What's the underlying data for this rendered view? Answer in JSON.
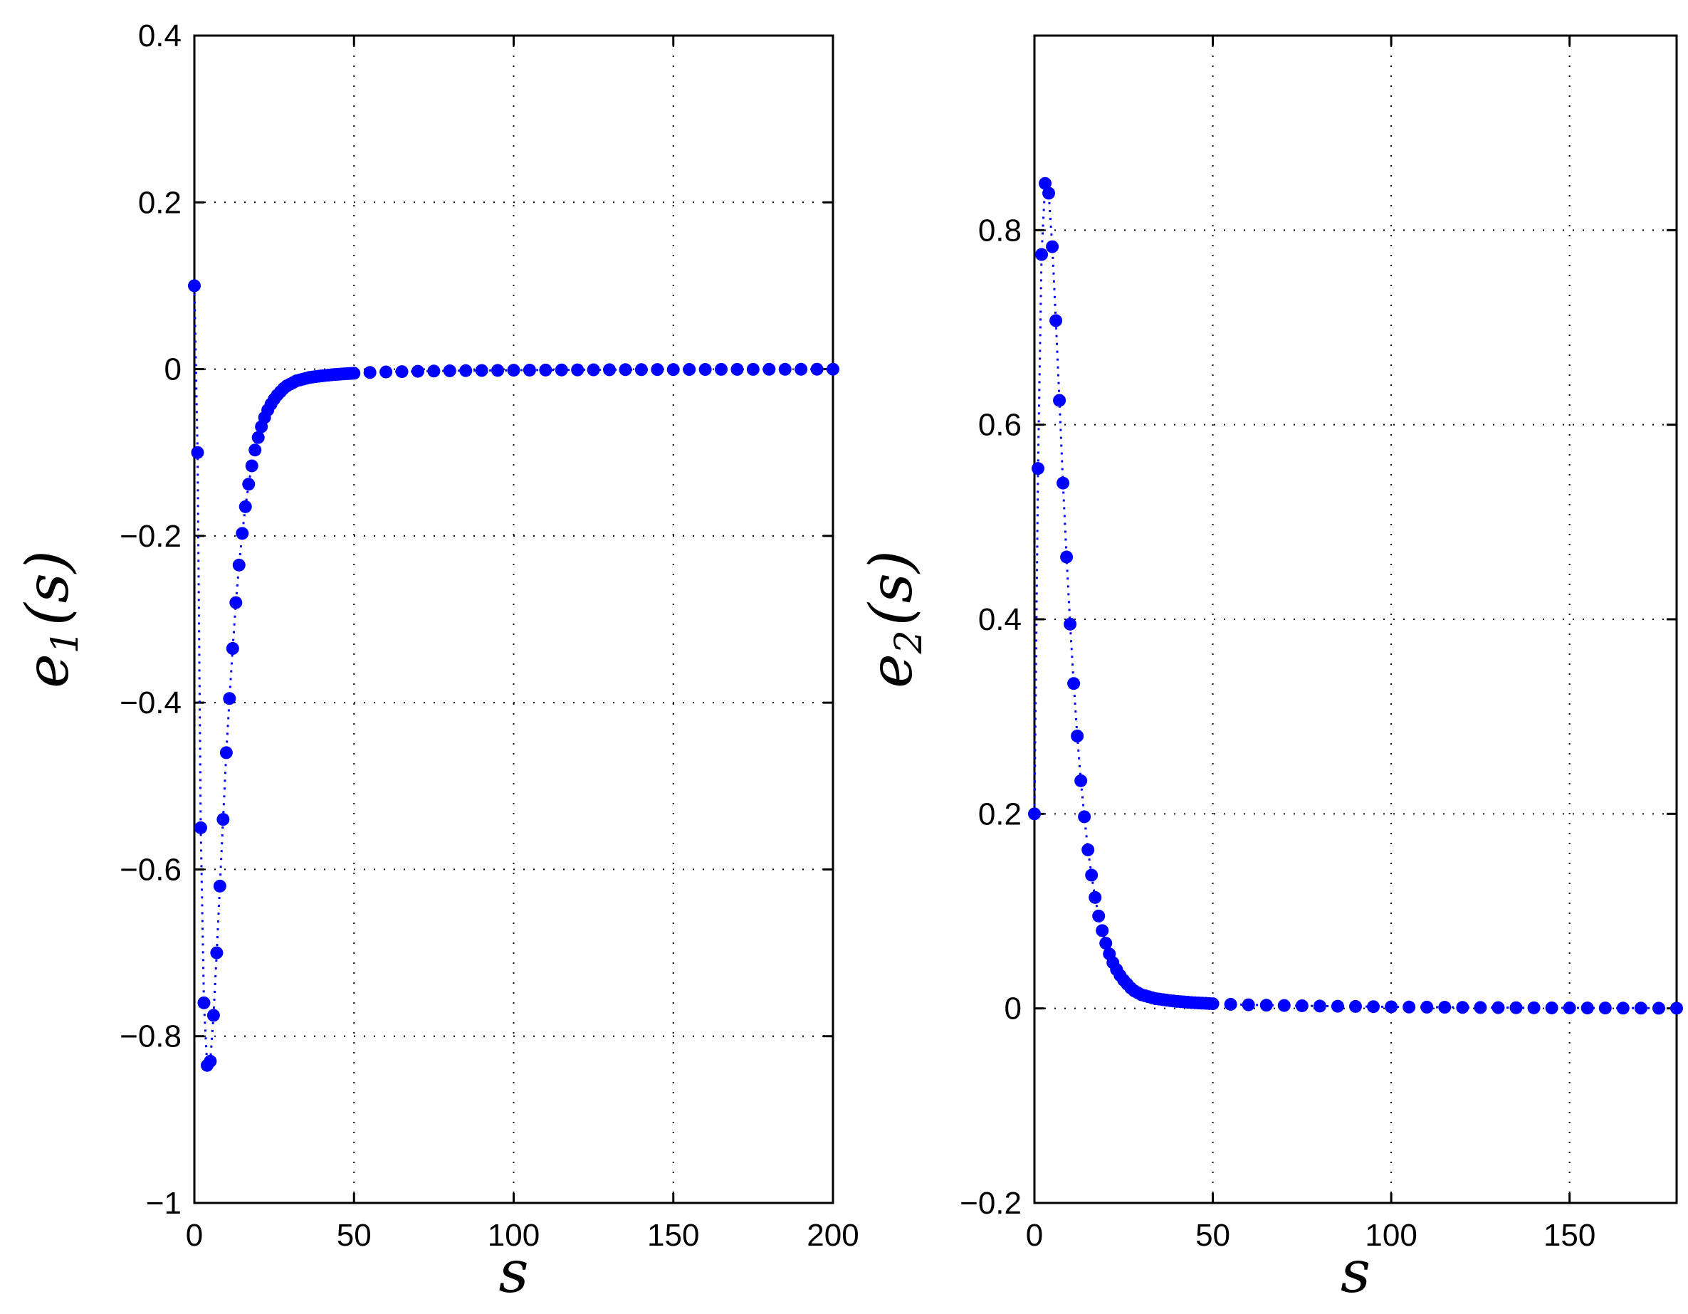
{
  "chart_data": [
    {
      "type": "scatter",
      "ylabel_main": "e",
      "ylabel_sub": "1",
      "ylabel_arg": "(s)",
      "xlabel": "s",
      "xlim": [
        0,
        200
      ],
      "ylim": [
        -1,
        0.4
      ],
      "xticks": [
        0,
        50,
        100,
        150,
        200
      ],
      "xtick_labels": [
        "0",
        "50",
        "100",
        "150",
        "200"
      ],
      "yticks": [
        -1,
        -0.8,
        -0.6,
        -0.4,
        -0.2,
        0,
        0.2,
        0.4
      ],
      "ytick_labels": [
        "−1",
        "−0.8",
        "−0.6",
        "−0.4",
        "−0.2",
        "0",
        "0.2",
        "0.4"
      ],
      "grid": true,
      "marker_color": "#0000ff",
      "line_style": "dotted",
      "series": [
        {
          "x": [
            0,
            1,
            2,
            3,
            4,
            5,
            6,
            7,
            8,
            9,
            10,
            11,
            12,
            13,
            14,
            15,
            16,
            17,
            18,
            19,
            20,
            21,
            22,
            23,
            24,
            25,
            26,
            27,
            28,
            29,
            30,
            31,
            32,
            33,
            34,
            35,
            36,
            37,
            38,
            39,
            40,
            41,
            42,
            43,
            44,
            45,
            46,
            47,
            48,
            49,
            50,
            55,
            60,
            65,
            70,
            75,
            80,
            85,
            90,
            95,
            100,
            105,
            110,
            115,
            120,
            125,
            130,
            135,
            140,
            145,
            150,
            155,
            160,
            165,
            170,
            175,
            180,
            185,
            190,
            195,
            200
          ],
          "y": [
            0.1,
            -0.1,
            -0.55,
            -0.76,
            -0.835,
            -0.83,
            -0.775,
            -0.7,
            -0.62,
            -0.54,
            -0.46,
            -0.395,
            -0.335,
            -0.28,
            -0.235,
            -0.197,
            -0.165,
            -0.138,
            -0.116,
            -0.097,
            -0.082,
            -0.069,
            -0.058,
            -0.049,
            -0.042,
            -0.036,
            -0.031,
            -0.027,
            -0.023,
            -0.02,
            -0.018,
            -0.016,
            -0.014,
            -0.013,
            -0.012,
            -0.011,
            -0.01,
            -0.0095,
            -0.009,
            -0.0085,
            -0.008,
            -0.0076,
            -0.0072,
            -0.0068,
            -0.0065,
            -0.0062,
            -0.0059,
            -0.0056,
            -0.0054,
            -0.0052,
            -0.005,
            -0.004,
            -0.0034,
            -0.003,
            -0.0026,
            -0.0023,
            -0.002,
            -0.0018,
            -0.0016,
            -0.0015,
            -0.0013,
            -0.0012,
            -0.0011,
            -0.001,
            -0.0009,
            -0.0008,
            -0.0007,
            -0.0006,
            -0.0006,
            -0.0005,
            -0.0005,
            -0.0004,
            -0.0004,
            -0.0003,
            -0.0003,
            -0.0003,
            -0.0002,
            -0.0002,
            -0.0002,
            -0.0001,
            -0.0001
          ]
        }
      ]
    },
    {
      "type": "scatter",
      "ylabel_main": "e",
      "ylabel_sub": "2",
      "ylabel_arg": "(s)",
      "xlabel": "s",
      "xlim": [
        0,
        180
      ],
      "ylim": [
        -0.2,
        1.0
      ],
      "xticks": [
        0,
        50,
        100,
        150
      ],
      "xtick_labels": [
        "0",
        "50",
        "100",
        "150"
      ],
      "yticks": [
        -0.2,
        0,
        0.2,
        0.4,
        0.6,
        0.8
      ],
      "ytick_labels": [
        "−0.2",
        "0",
        "0.2",
        "0.4",
        "0.6",
        "0.8"
      ],
      "grid": true,
      "marker_color": "#0000ff",
      "line_style": "dotted",
      "series": [
        {
          "x": [
            0,
            1,
            2,
            3,
            4,
            5,
            6,
            7,
            8,
            9,
            10,
            11,
            12,
            13,
            14,
            15,
            16,
            17,
            18,
            19,
            20,
            21,
            22,
            23,
            24,
            25,
            26,
            27,
            28,
            29,
            30,
            31,
            32,
            33,
            34,
            35,
            36,
            37,
            38,
            39,
            40,
            41,
            42,
            43,
            44,
            45,
            46,
            47,
            48,
            49,
            50,
            55,
            60,
            65,
            70,
            75,
            80,
            85,
            90,
            95,
            100,
            105,
            110,
            115,
            120,
            125,
            130,
            135,
            140,
            145,
            150,
            155,
            160,
            165,
            170,
            175,
            180
          ],
          "y": [
            0.2,
            0.555,
            0.775,
            0.848,
            0.838,
            0.783,
            0.707,
            0.625,
            0.54,
            0.464,
            0.395,
            0.334,
            0.28,
            0.234,
            0.197,
            0.163,
            0.137,
            0.114,
            0.095,
            0.08,
            0.067,
            0.056,
            0.047,
            0.04,
            0.034,
            0.029,
            0.025,
            0.021,
            0.018,
            0.016,
            0.014,
            0.013,
            0.012,
            0.011,
            0.01,
            0.0095,
            0.009,
            0.0085,
            0.008,
            0.0076,
            0.0072,
            0.0069,
            0.0066,
            0.0063,
            0.006,
            0.0058,
            0.0056,
            0.0054,
            0.0052,
            0.005,
            0.0048,
            0.0042,
            0.0037,
            0.0033,
            0.003,
            0.0027,
            0.0024,
            0.0022,
            0.002,
            0.0018,
            0.0016,
            0.0014,
            0.0013,
            0.0012,
            0.001,
            0.0009,
            0.0008,
            0.0007,
            0.0006,
            0.0005,
            0.0005,
            0.0004,
            0.0004,
            0.0003,
            0.0003,
            0.0002,
            0.0002
          ]
        }
      ]
    }
  ]
}
